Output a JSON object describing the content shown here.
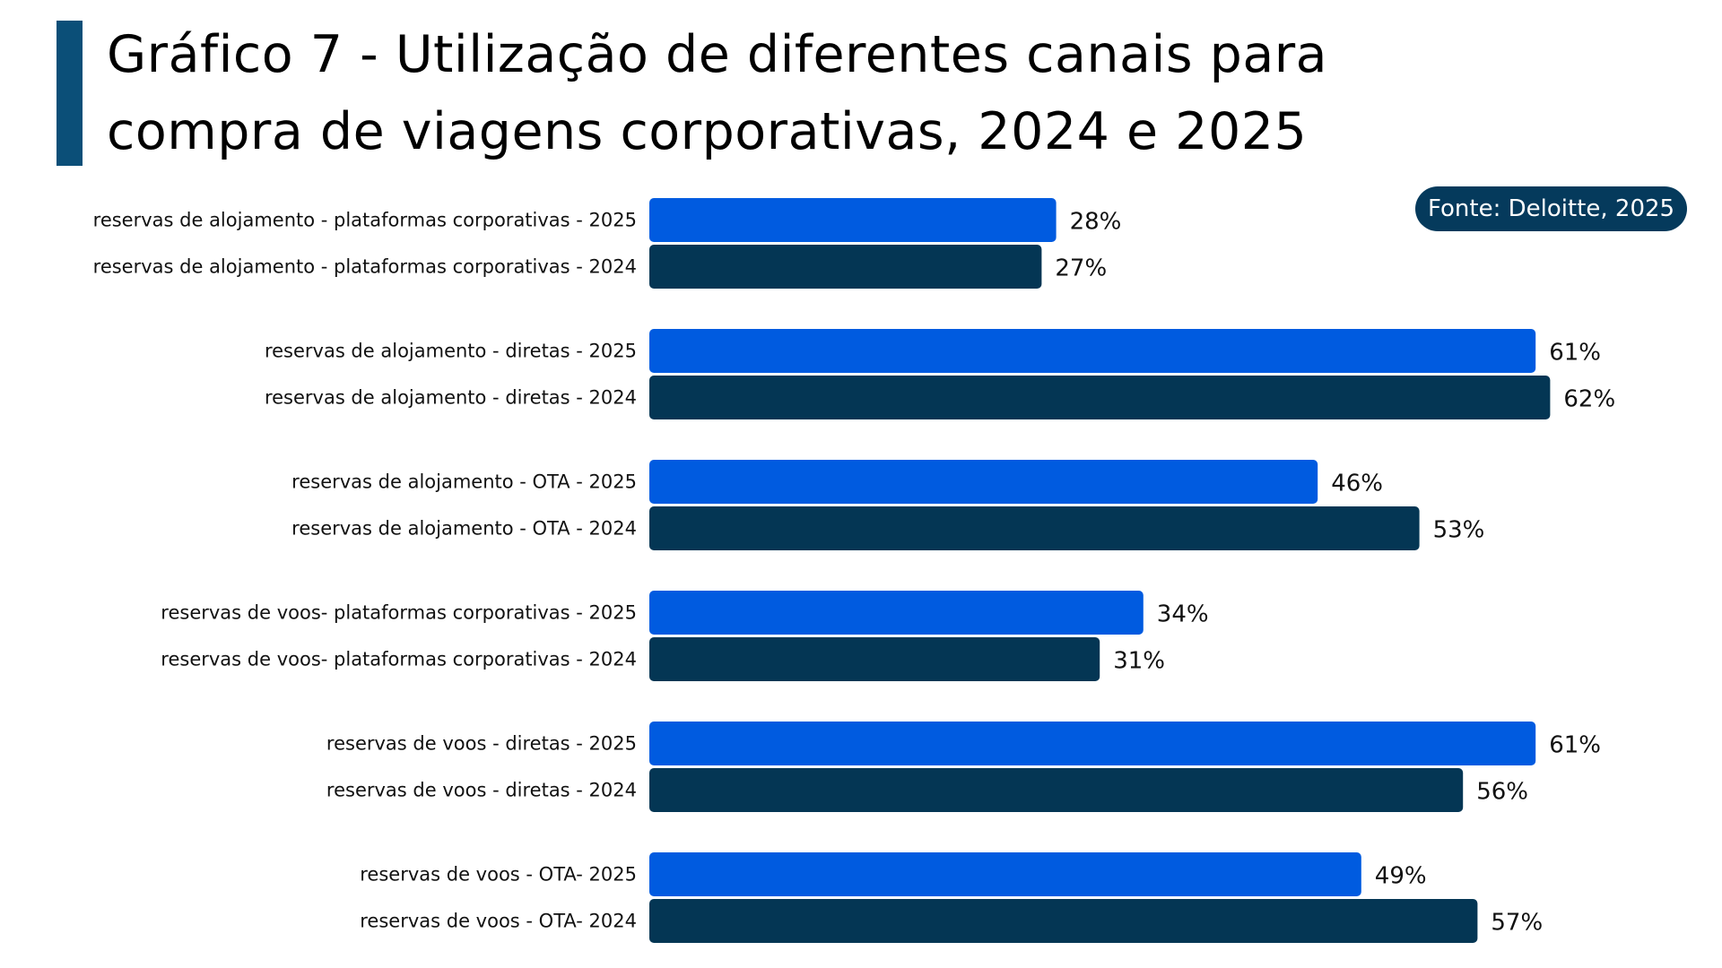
{
  "header": {
    "title_line1": "Gráfico 7 - Utilização de diferentes canais para",
    "title_line2": "compra de viagens corporativas, 2024 e 2025",
    "accent_color": "#0b4f78"
  },
  "source_badge": {
    "text": "Fonte: Deloitte, 2025",
    "bg_color": "#053a5c"
  },
  "chart_data": {
    "type": "bar",
    "orientation": "horizontal",
    "title": "Gráfico 7 - Utilização de diferentes canais para compra de viagens corporativas, 2024 e 2025",
    "xlabel": "",
    "ylabel": "",
    "xlim": [
      0,
      62
    ],
    "grid": false,
    "unit": "%",
    "colors": {
      "2025": "#005be0",
      "2024": "#043654"
    },
    "categories": [
      "reservas de alojamento - plataformas corporativas - 2025",
      "reservas de alojamento - plataformas corporativas - 2024",
      "reservas de alojamento - diretas - 2025",
      "reservas de alojamento - diretas - 2024",
      "reservas de alojamento - OTA - 2025",
      "reservas de alojamento - OTA - 2024",
      "reservas de voos- plataformas corporativas - 2025",
      "reservas de voos- plataformas corporativas - 2024",
      "reservas de voos - diretas - 2025",
      "reservas de voos - diretas - 2024",
      "reservas de voos - OTA- 2025",
      "reservas de voos - OTA- 2024"
    ],
    "years": [
      "2025",
      "2024",
      "2025",
      "2024",
      "2025",
      "2024",
      "2025",
      "2024",
      "2025",
      "2024",
      "2025",
      "2024"
    ],
    "values": [
      28,
      27,
      61,
      62,
      46,
      53,
      34,
      31,
      61,
      56,
      49,
      57
    ],
    "value_labels": [
      "28%",
      "27%",
      "61%",
      "62%",
      "46%",
      "53%",
      "34%",
      "31%",
      "61%",
      "56%",
      "49%",
      "57%"
    ]
  }
}
